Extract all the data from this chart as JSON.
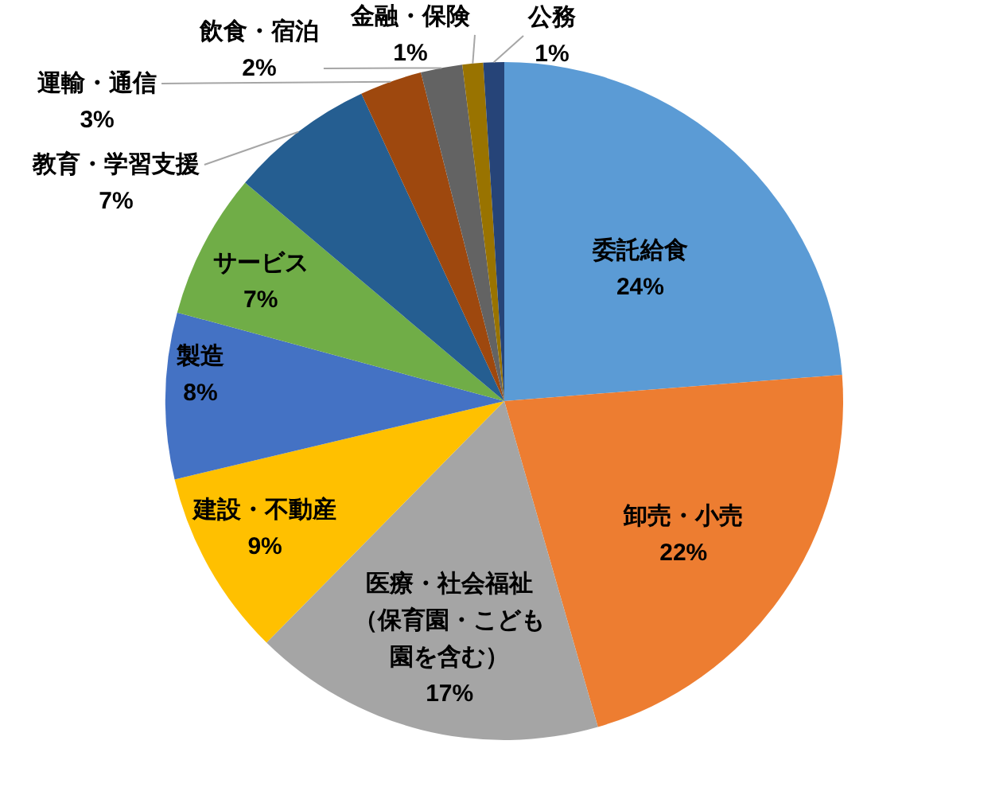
{
  "chart_data": {
    "type": "pie",
    "categories": [
      "委託給食",
      "卸売・小売",
      "医療・社会福祉（保育園・こども園を含む）",
      "建設・不動産",
      "製造",
      "サービス",
      "教育・学習支援",
      "運輸・通信",
      "飲食・宿泊",
      "金融・保険",
      "公務"
    ],
    "values": [
      24,
      22,
      17,
      9,
      8,
      7,
      7,
      3,
      2,
      1,
      1
    ],
    "value_labels": [
      "24%",
      "22%",
      "17%",
      "9%",
      "8%",
      "7%",
      "7%",
      "3%",
      "2%",
      "1%",
      "1%"
    ],
    "colors": [
      "#5b9bd5",
      "#ed7d31",
      "#a5a5a5",
      "#ffc000",
      "#4472c4",
      "#70ad47",
      "#255e91",
      "#9e480e",
      "#636363",
      "#997300",
      "#264478"
    ]
  }
}
